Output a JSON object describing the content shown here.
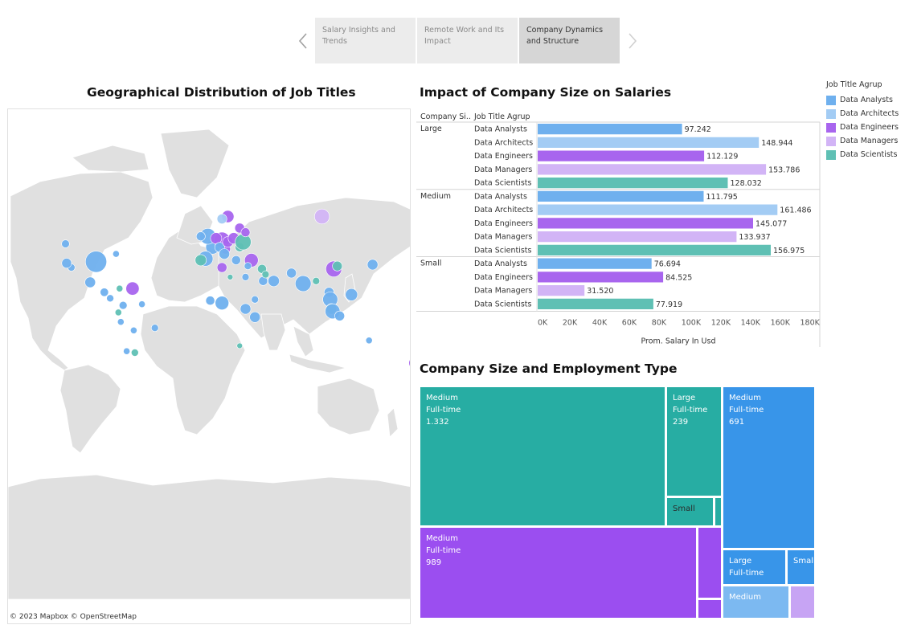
{
  "story": {
    "points": [
      {
        "label": "Salary Insights and Trends",
        "active": false
      },
      {
        "label": "Remote Work and Its Impact",
        "active": false
      },
      {
        "label": "Company Dynamics and Structure",
        "active": true
      }
    ]
  },
  "map": {
    "title": "Geographical Distribution of Job Titles",
    "credit": "© 2023 Mapbox  © OpenStreetMap"
  },
  "legend": {
    "title": "Job Title Agrup",
    "items": [
      {
        "label": "Data Analysts",
        "color": "#6fb0ee"
      },
      {
        "label": "Data Architects",
        "color": "#a3ccf4"
      },
      {
        "label": "Data Engineers",
        "color": "#a865ee"
      },
      {
        "label": "Data Managers",
        "color": "#d2b4f6"
      },
      {
        "label": "Data Scientists",
        "color": "#5fc0b4"
      }
    ]
  },
  "chart_data": [
    {
      "type": "bar",
      "orientation": "horizontal",
      "title": "Impact of Company Size on Salaries",
      "column_headers": [
        "Company Si..",
        "Job Title Agrup"
      ],
      "xlabel": "Prom. Salary In Usd",
      "xlim": [
        0,
        190000
      ],
      "x_ticks": [
        0,
        20000,
        40000,
        60000,
        80000,
        100000,
        120000,
        140000,
        160000,
        180000
      ],
      "x_tick_labels": [
        "0K",
        "20K",
        "40K",
        "60K",
        "80K",
        "100K",
        "120K",
        "140K",
        "160K",
        "180K"
      ],
      "groups": [
        {
          "name": "Large",
          "rows": [
            {
              "category": "Data Analysts",
              "value": 97242,
              "label": "97.242"
            },
            {
              "category": "Data Architects",
              "value": 148944,
              "label": "148.944"
            },
            {
              "category": "Data Engineers",
              "value": 112129,
              "label": "112.129"
            },
            {
              "category": "Data Managers",
              "value": 153786,
              "label": "153.786"
            },
            {
              "category": "Data Scientists",
              "value": 128032,
              "label": "128.032"
            }
          ]
        },
        {
          "name": "Medium",
          "rows": [
            {
              "category": "Data Analysts",
              "value": 111795,
              "label": "111.795"
            },
            {
              "category": "Data Architects",
              "value": 161486,
              "label": "161.486"
            },
            {
              "category": "Data Engineers",
              "value": 145077,
              "label": "145.077"
            },
            {
              "category": "Data Managers",
              "value": 133937,
              "label": "133.937"
            },
            {
              "category": "Data Scientists",
              "value": 156975,
              "label": "156.975"
            }
          ]
        },
        {
          "name": "Small",
          "rows": [
            {
              "category": "Data Analysts",
              "value": 76694,
              "label": "76.694"
            },
            {
              "category": "Data Engineers",
              "value": 84525,
              "label": "84.525"
            },
            {
              "category": "Data Managers",
              "value": 31520,
              "label": "31.520"
            },
            {
              "category": "Data Scientists",
              "value": 77919,
              "label": "77.919"
            }
          ]
        }
      ],
      "grid": false
    },
    {
      "type": "treemap",
      "title": "Company Size and Employment Type",
      "tiles": [
        {
          "job": "Data Scientists",
          "size": "Medium",
          "employment": "Full-time",
          "count": 1332,
          "label": "1.332",
          "show_label": true
        },
        {
          "job": "Data Scientists",
          "size": "Large",
          "employment": "Full-time",
          "count": 239,
          "label": "239",
          "show_label": true
        },
        {
          "job": "Data Scientists",
          "size": "Small",
          "employment": "",
          "count": 64,
          "label": "",
          "show_label": true
        },
        {
          "job": "Data Analysts",
          "size": "Medium",
          "employment": "Full-time",
          "count": 691,
          "label": "691",
          "show_label": true
        },
        {
          "job": "Data Analysts",
          "size": "Large",
          "employment": "Full-time",
          "count": 72,
          "label": "",
          "show_label": true
        },
        {
          "job": "Data Analysts",
          "size": "Small",
          "employment": "",
          "count": 33,
          "label": "",
          "show_label": true
        },
        {
          "job": "Data Engineers",
          "size": "Medium",
          "employment": "Full-time",
          "count": 989,
          "label": "989",
          "show_label": true
        },
        {
          "job": "Data Architects",
          "size": "Medium",
          "employment": "",
          "count": 90,
          "label": "",
          "show_label": true
        },
        {
          "job": "Data Managers",
          "size": "",
          "employment": "",
          "count": 40,
          "label": "",
          "show_label": false
        }
      ]
    }
  ],
  "map_points": [
    {
      "lon": -123,
      "lat": 49,
      "job": "Data Analysts",
      "count": 4
    },
    {
      "lon": -118,
      "lat": 34,
      "job": "Data Analysts",
      "count": 3
    },
    {
      "lon": -97,
      "lat": 38,
      "job": "Data Analysts",
      "count": 60
    },
    {
      "lon": -122,
      "lat": 37,
      "job": "Data Analysts",
      "count": 8
    },
    {
      "lon": -80,
      "lat": 43,
      "job": "Data Analysts",
      "count": 2
    },
    {
      "lon": -102,
      "lat": 23,
      "job": "Data Analysts",
      "count": 10
    },
    {
      "lon": -90,
      "lat": 15,
      "job": "Data Analysts",
      "count": 5
    },
    {
      "lon": -85,
      "lat": 10,
      "job": "Data Analysts",
      "count": 3
    },
    {
      "lon": -77,
      "lat": 18,
      "job": "Data Scientists",
      "count": 2
    },
    {
      "lon": -66,
      "lat": 18,
      "job": "Data Engineers",
      "count": 18
    },
    {
      "lon": -74,
      "lat": 4,
      "job": "Data Analysts",
      "count": 4
    },
    {
      "lon": -78,
      "lat": -2,
      "job": "Data Scientists",
      "count": 2
    },
    {
      "lon": -58,
      "lat": 5,
      "job": "Data Analysts",
      "count": 2
    },
    {
      "lon": -76,
      "lat": -10,
      "job": "Data Analysts",
      "count": 2
    },
    {
      "lon": -47,
      "lat": -15,
      "job": "Data Analysts",
      "count": 3
    },
    {
      "lon": -65,
      "lat": -17,
      "job": "Data Analysts",
      "count": 2
    },
    {
      "lon": -71,
      "lat": -33,
      "job": "Data Analysts",
      "count": 2
    },
    {
      "lon": -64,
      "lat": -34,
      "job": "Data Scientists",
      "count": 3
    },
    {
      "lon": 2,
      "lat": 47,
      "job": "Data Analysts",
      "count": 20
    },
    {
      "lon": -2,
      "lat": 53,
      "job": "Data Analysts",
      "count": 30
    },
    {
      "lon": -8,
      "lat": 53,
      "job": "Data Analysts",
      "count": 6
    },
    {
      "lon": -4,
      "lat": 40,
      "job": "Data Analysts",
      "count": 25
    },
    {
      "lon": -8,
      "lat": 39,
      "job": "Data Scientists",
      "count": 12
    },
    {
      "lon": 10,
      "lat": 51,
      "job": "Data Engineers",
      "count": 30
    },
    {
      "lon": 5,
      "lat": 52,
      "job": "Data Engineers",
      "count": 12
    },
    {
      "lon": 13,
      "lat": 46,
      "job": "Data Engineers",
      "count": 8
    },
    {
      "lon": 8,
      "lat": 47,
      "job": "Data Analysts",
      "count": 8
    },
    {
      "lon": 15,
      "lat": 50,
      "job": "Data Engineers",
      "count": 10
    },
    {
      "lon": 20,
      "lat": 52,
      "job": "Data Engineers",
      "count": 12
    },
    {
      "lon": 25,
      "lat": 47,
      "job": "Data Scientists",
      "count": 6
    },
    {
      "lon": 28,
      "lat": 50,
      "job": "Data Scientists",
      "count": 30
    },
    {
      "lon": 22,
      "lat": 39,
      "job": "Data Analysts",
      "count": 6
    },
    {
      "lon": 12,
      "lat": 43,
      "job": "Data Analysts",
      "count": 10
    },
    {
      "lon": 15,
      "lat": 62,
      "job": "Data Engineers",
      "count": 15
    },
    {
      "lon": 10,
      "lat": 61,
      "job": "Data Architects",
      "count": 8
    },
    {
      "lon": 25,
      "lat": 57,
      "job": "Data Engineers",
      "count": 8
    },
    {
      "lon": 30,
      "lat": 55,
      "job": "Data Engineers",
      "count": 6
    },
    {
      "lon": 35,
      "lat": 39,
      "job": "Data Engineers",
      "count": 20
    },
    {
      "lon": 32,
      "lat": 35,
      "job": "Data Analysts",
      "count": 3
    },
    {
      "lon": 10,
      "lat": 34,
      "job": "Data Engineers",
      "count": 8
    },
    {
      "lon": 17,
      "lat": 27,
      "job": "Data Scientists",
      "count": 1
    },
    {
      "lon": 30,
      "lat": 27,
      "job": "Data Analysts",
      "count": 3
    },
    {
      "lon": 44,
      "lat": 33,
      "job": "Data Scientists",
      "count": 6
    },
    {
      "lon": 54,
      "lat": 24,
      "job": "Data Analysts",
      "count": 12
    },
    {
      "lon": 45,
      "lat": 24,
      "job": "Data Analysts",
      "count": 6
    },
    {
      "lon": 47,
      "lat": 29,
      "job": "Data Scientists",
      "count": 3
    },
    {
      "lon": 69,
      "lat": 30,
      "job": "Data Analysts",
      "count": 8
    },
    {
      "lon": 79,
      "lat": 22,
      "job": "Data Analysts",
      "count": 30
    },
    {
      "lon": 90,
      "lat": 24,
      "job": "Data Scientists",
      "count": 3
    },
    {
      "lon": 101,
      "lat": 15,
      "job": "Data Analysts",
      "count": 8
    },
    {
      "lon": 105,
      "lat": 33,
      "job": "Data Engineers",
      "count": 30
    },
    {
      "lon": 108,
      "lat": 35,
      "job": "Data Scientists",
      "count": 8
    },
    {
      "lon": 102,
      "lat": 9,
      "job": "Data Analysts",
      "count": 25
    },
    {
      "lon": 103,
      "lat": 1,
      "job": "Data Scientists",
      "count": 10
    },
    {
      "lon": 104,
      "lat": -1,
      "job": "Data Analysts",
      "count": 25
    },
    {
      "lon": 110,
      "lat": -5,
      "job": "Data Analysts",
      "count": 8
    },
    {
      "lon": 120,
      "lat": 13,
      "job": "Data Analysts",
      "count": 15
    },
    {
      "lon": 138,
      "lat": 36,
      "job": "Data Analysts",
      "count": 10
    },
    {
      "lon": 95,
      "lat": 62,
      "job": "Data Managers",
      "count": 25
    },
    {
      "lon": 38,
      "lat": 9,
      "job": "Data Analysts",
      "count": 3
    },
    {
      "lon": 30,
      "lat": 1,
      "job": "Data Analysts",
      "count": 10
    },
    {
      "lon": 10,
      "lat": 6,
      "job": "Data Analysts",
      "count": 20
    },
    {
      "lon": 0,
      "lat": 8,
      "job": "Data Analysts",
      "count": 6
    },
    {
      "lon": 38,
      "lat": -6,
      "job": "Data Analysts",
      "count": 10
    },
    {
      "lon": 25,
      "lat": -29,
      "job": "Data Scientists",
      "count": 1
    },
    {
      "lon": 135,
      "lat": -25,
      "job": "Data Analysts",
      "count": 2
    },
    {
      "lon": 174,
      "lat": -41,
      "job": "Data Engineers",
      "count": 15
    }
  ]
}
